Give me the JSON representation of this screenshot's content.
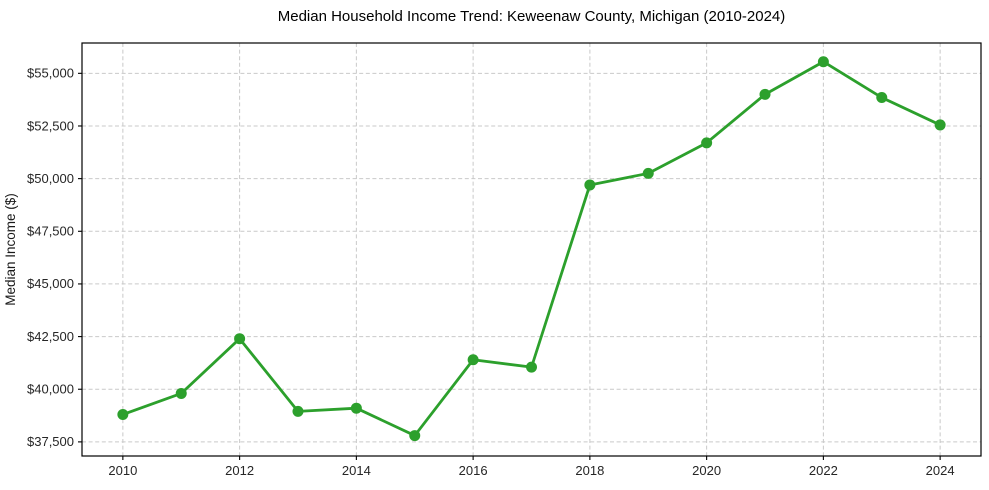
{
  "chart_data": {
    "type": "line",
    "title": "Median Household Income Trend: Keweenaw County, Michigan (2010-2024)",
    "xlabel": "",
    "ylabel": "Median Income ($)",
    "x": [
      2010,
      2011,
      2012,
      2013,
      2014,
      2015,
      2016,
      2017,
      2018,
      2019,
      2020,
      2021,
      2022,
      2023,
      2024
    ],
    "series": [
      {
        "name": "Median Household Income",
        "values": [
          38800,
          39800,
          42400,
          38950,
          39100,
          37800,
          41400,
          41050,
          49700,
          50250,
          51700,
          54000,
          55550,
          53850,
          52550
        ]
      }
    ],
    "x_ticks": [
      2010,
      2012,
      2014,
      2016,
      2018,
      2020,
      2022,
      2024
    ],
    "x_tick_labels": [
      "2010",
      "2012",
      "2014",
      "2016",
      "2018",
      "2020",
      "2022",
      "2024"
    ],
    "y_ticks": [
      37500,
      40000,
      42500,
      45000,
      47500,
      50000,
      52500,
      55000
    ],
    "y_tick_labels": [
      "$37,500",
      "$40,000",
      "$42,500",
      "$45,000",
      "$47,500",
      "$50,000",
      "$52,500",
      "$55,000"
    ],
    "xlim": [
      2009.3,
      2024.7
    ],
    "ylim": [
      36830,
      56440
    ],
    "grid": true,
    "grid_style": "dashed",
    "legend": "none",
    "colors": {
      "line": "#2ca02c",
      "marker": "#2ca02c",
      "grid": "#c9c9c9",
      "axis": "#000000",
      "tick_label": "#262626",
      "background": "#ffffff"
    }
  }
}
